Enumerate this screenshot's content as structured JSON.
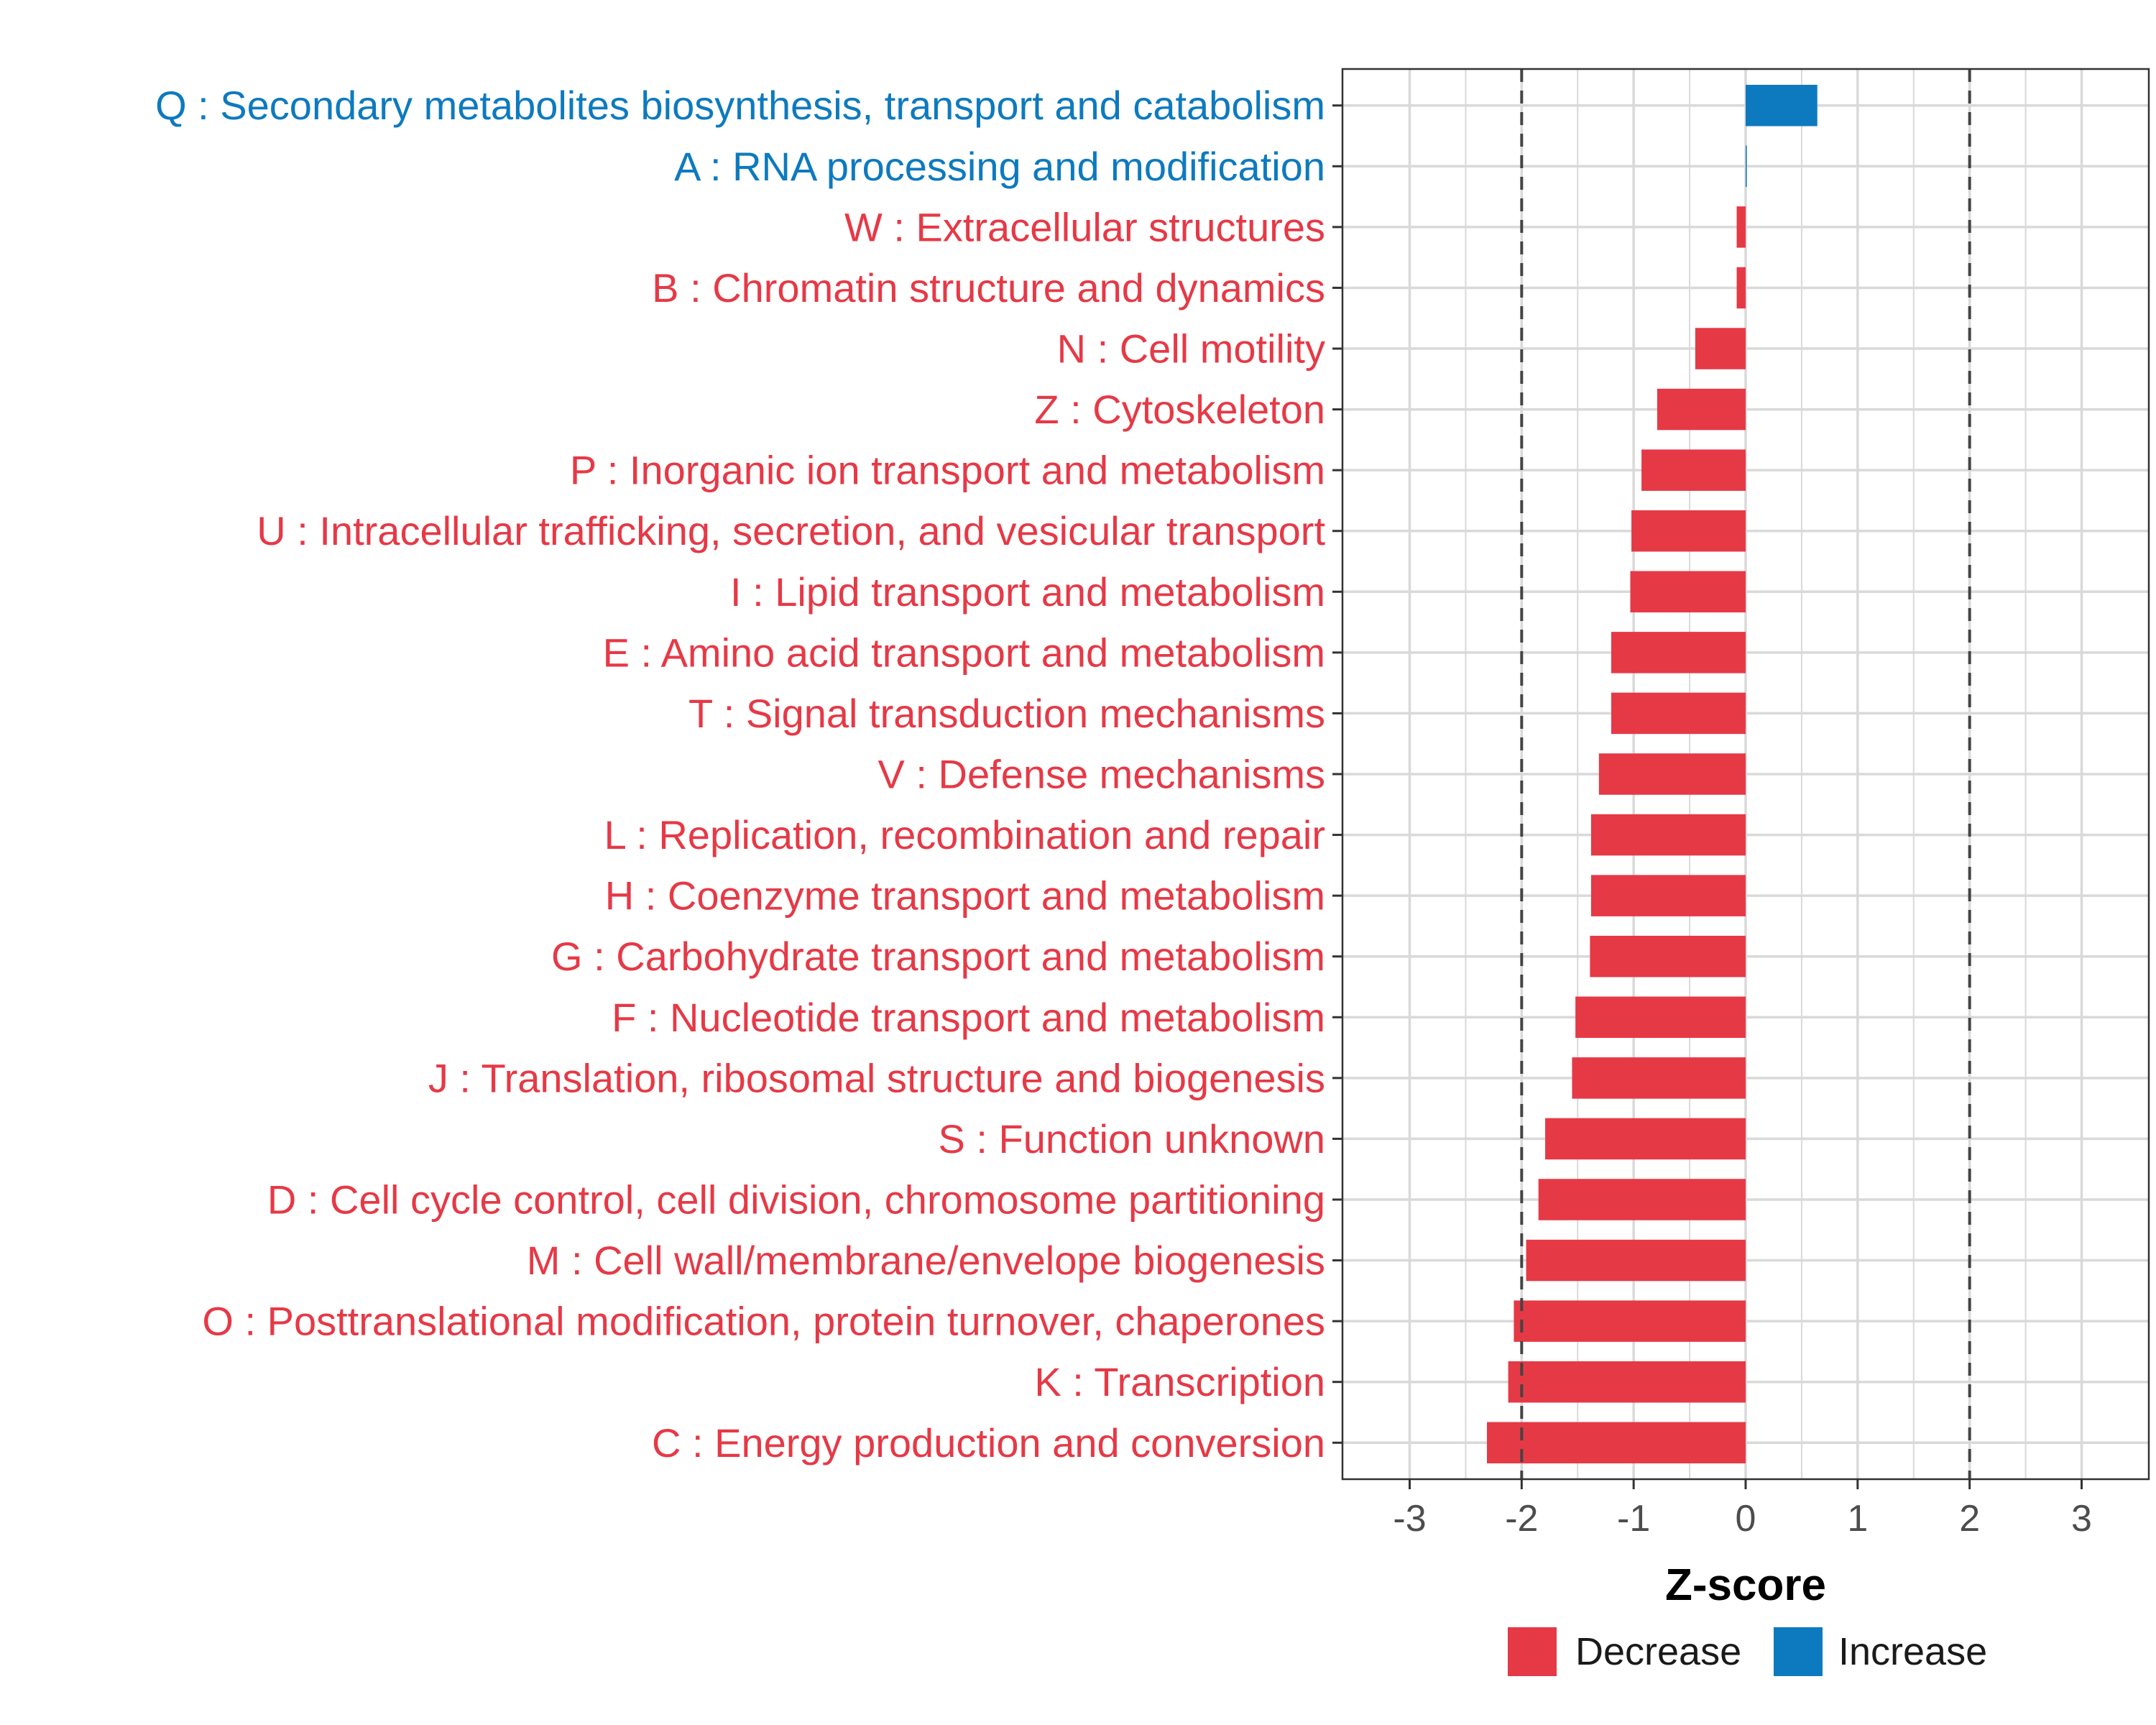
{
  "chart_data": {
    "type": "bar",
    "orientation": "horizontal",
    "xlabel": "Z-score",
    "xlim": [
      -3.6,
      3.6
    ],
    "x_ticks": [
      -3,
      -2,
      -1,
      0,
      1,
      2,
      3
    ],
    "x_tick_labels": [
      "-3",
      "-2",
      "-1",
      "0",
      "1",
      "2",
      "3"
    ],
    "reference_lines": [
      -2,
      2
    ],
    "grid": true,
    "legend_position": "bottom",
    "colors": {
      "Decrease": "#E63946",
      "Increase": "#0D7ABF",
      "grid": "#d9d9d9",
      "ref_line": "#444444"
    },
    "legend": [
      {
        "label": "Decrease",
        "color": "#E63946"
      },
      {
        "label": "Increase",
        "color": "#0D7ABF"
      }
    ],
    "categories": [
      "Q : Secondary metabolites biosynthesis, transport and catabolism",
      "A : RNA processing and modification",
      "W : Extracellular structures",
      "B : Chromatin structure and dynamics",
      "N : Cell motility",
      "Z : Cytoskeleton",
      "P : Inorganic ion transport and metabolism",
      "U : Intracellular trafficking, secretion, and vesicular transport",
      "I : Lipid transport and metabolism",
      "E : Amino acid transport and metabolism",
      "T : Signal transduction mechanisms",
      "V : Defense mechanisms",
      "L : Replication, recombination and repair",
      "H : Coenzyme transport and metabolism",
      "G : Carbohydrate transport and metabolism",
      "F : Nucleotide transport and metabolism",
      "J : Translation, ribosomal structure and biogenesis",
      "S : Function unknown",
      "D : Cell cycle control, cell division, chromosome partitioning",
      "M : Cell wall/membrane/envelope biogenesis",
      "O : Posttranslational modification, protein turnover, chaperones",
      "K : Transcription",
      "C : Energy production and conversion"
    ],
    "values": [
      0.64,
      0.01,
      -0.08,
      -0.08,
      -0.45,
      -0.79,
      -0.93,
      -1.02,
      -1.03,
      -1.2,
      -1.2,
      -1.31,
      -1.38,
      -1.38,
      -1.39,
      -1.52,
      -1.55,
      -1.79,
      -1.85,
      -1.96,
      -2.07,
      -2.12,
      -2.31
    ],
    "groups": [
      "Increase",
      "Increase",
      "Decrease",
      "Decrease",
      "Decrease",
      "Decrease",
      "Decrease",
      "Decrease",
      "Decrease",
      "Decrease",
      "Decrease",
      "Decrease",
      "Decrease",
      "Decrease",
      "Decrease",
      "Decrease",
      "Decrease",
      "Decrease",
      "Decrease",
      "Decrease",
      "Decrease",
      "Decrease",
      "Decrease"
    ]
  }
}
